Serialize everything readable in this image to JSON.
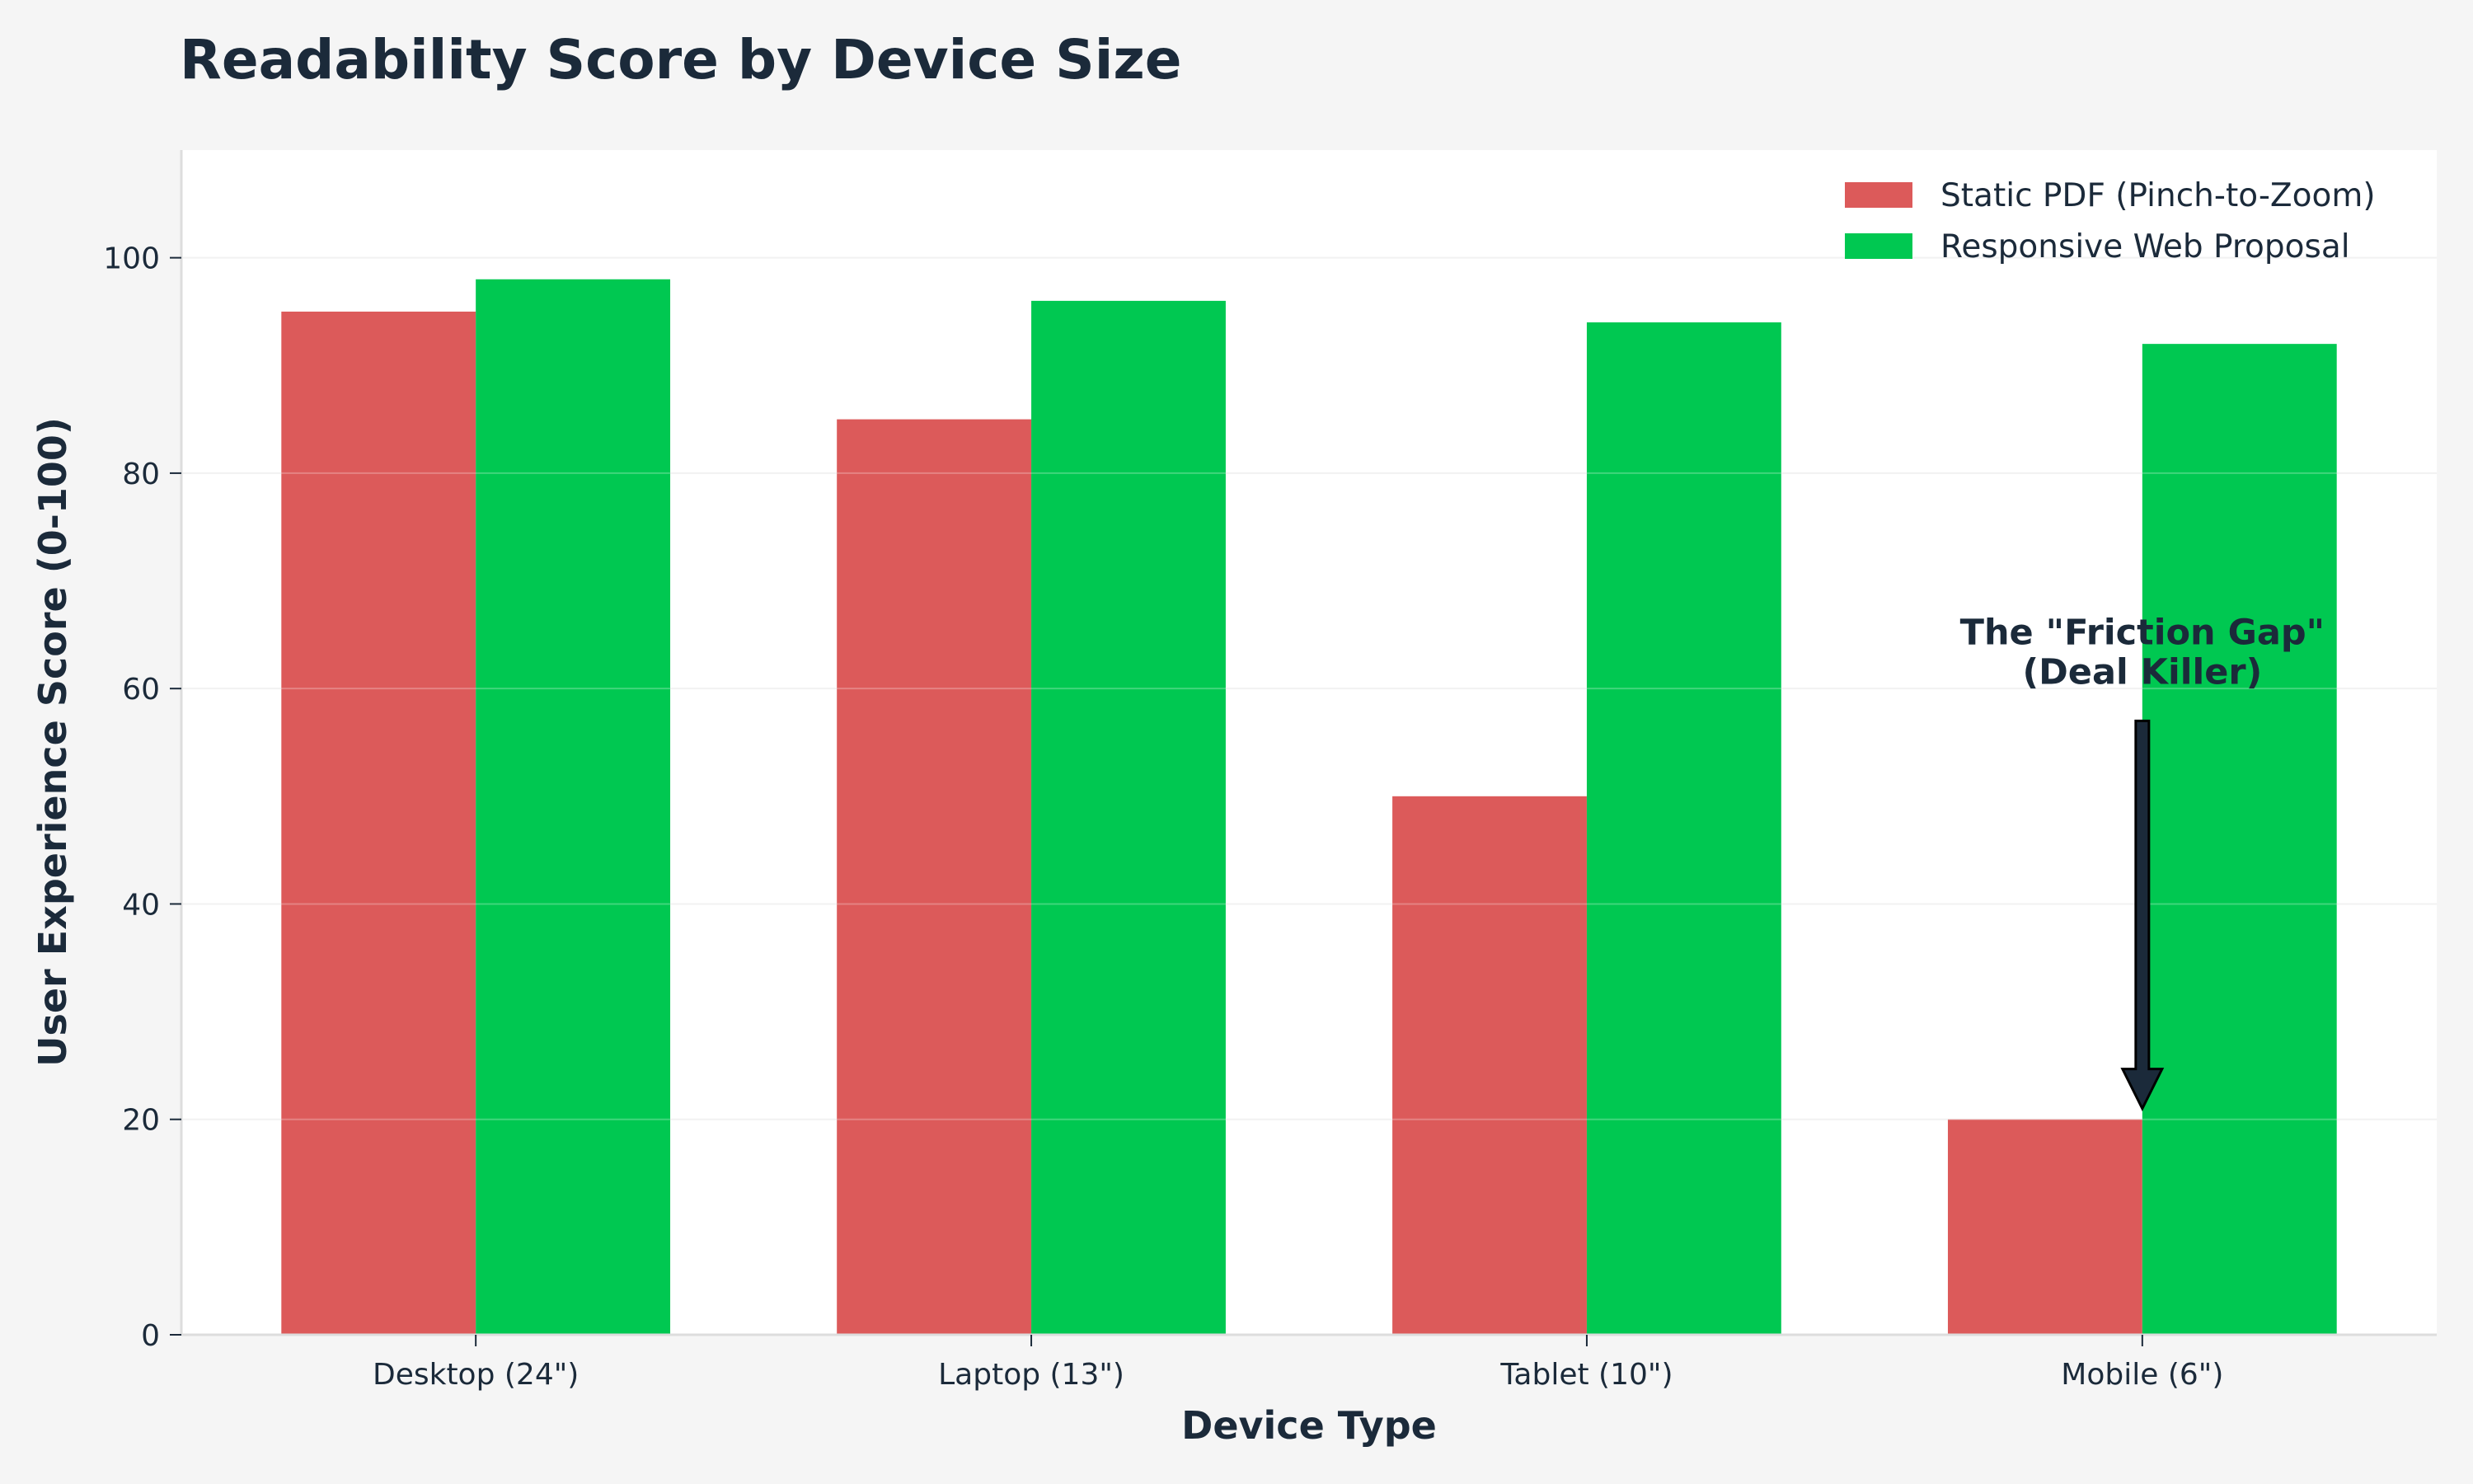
{
  "chart_data": {
    "type": "bar",
    "title": "Readability Score by Device Size",
    "xlabel": "Device Type",
    "ylabel": "User Experience Score (0-100)",
    "categories": [
      "Desktop (24\")",
      "Laptop (13\")",
      "Tablet (10\")",
      "Mobile (6\")"
    ],
    "series": [
      {
        "name": "Static PDF (Pinch-to-Zoom)",
        "values": [
          95,
          85,
          50,
          20
        ],
        "color": "#dc5a5a"
      },
      {
        "name": "Responsive Web Proposal",
        "values": [
          98,
          96,
          94,
          92
        ],
        "color": "#00c851"
      }
    ],
    "ylim": [
      0,
      110
    ],
    "yticks": [
      0,
      20,
      40,
      60,
      80,
      100
    ],
    "grid": true,
    "legend": "top-right",
    "annotation": {
      "text_line1": "The \"Friction Gap\"",
      "text_line2": "(Deal Killer)",
      "category": "Mobile (6\")",
      "arrow_from_y": 57,
      "arrow_to_y": 21,
      "color": "#1b2a3a"
    }
  }
}
